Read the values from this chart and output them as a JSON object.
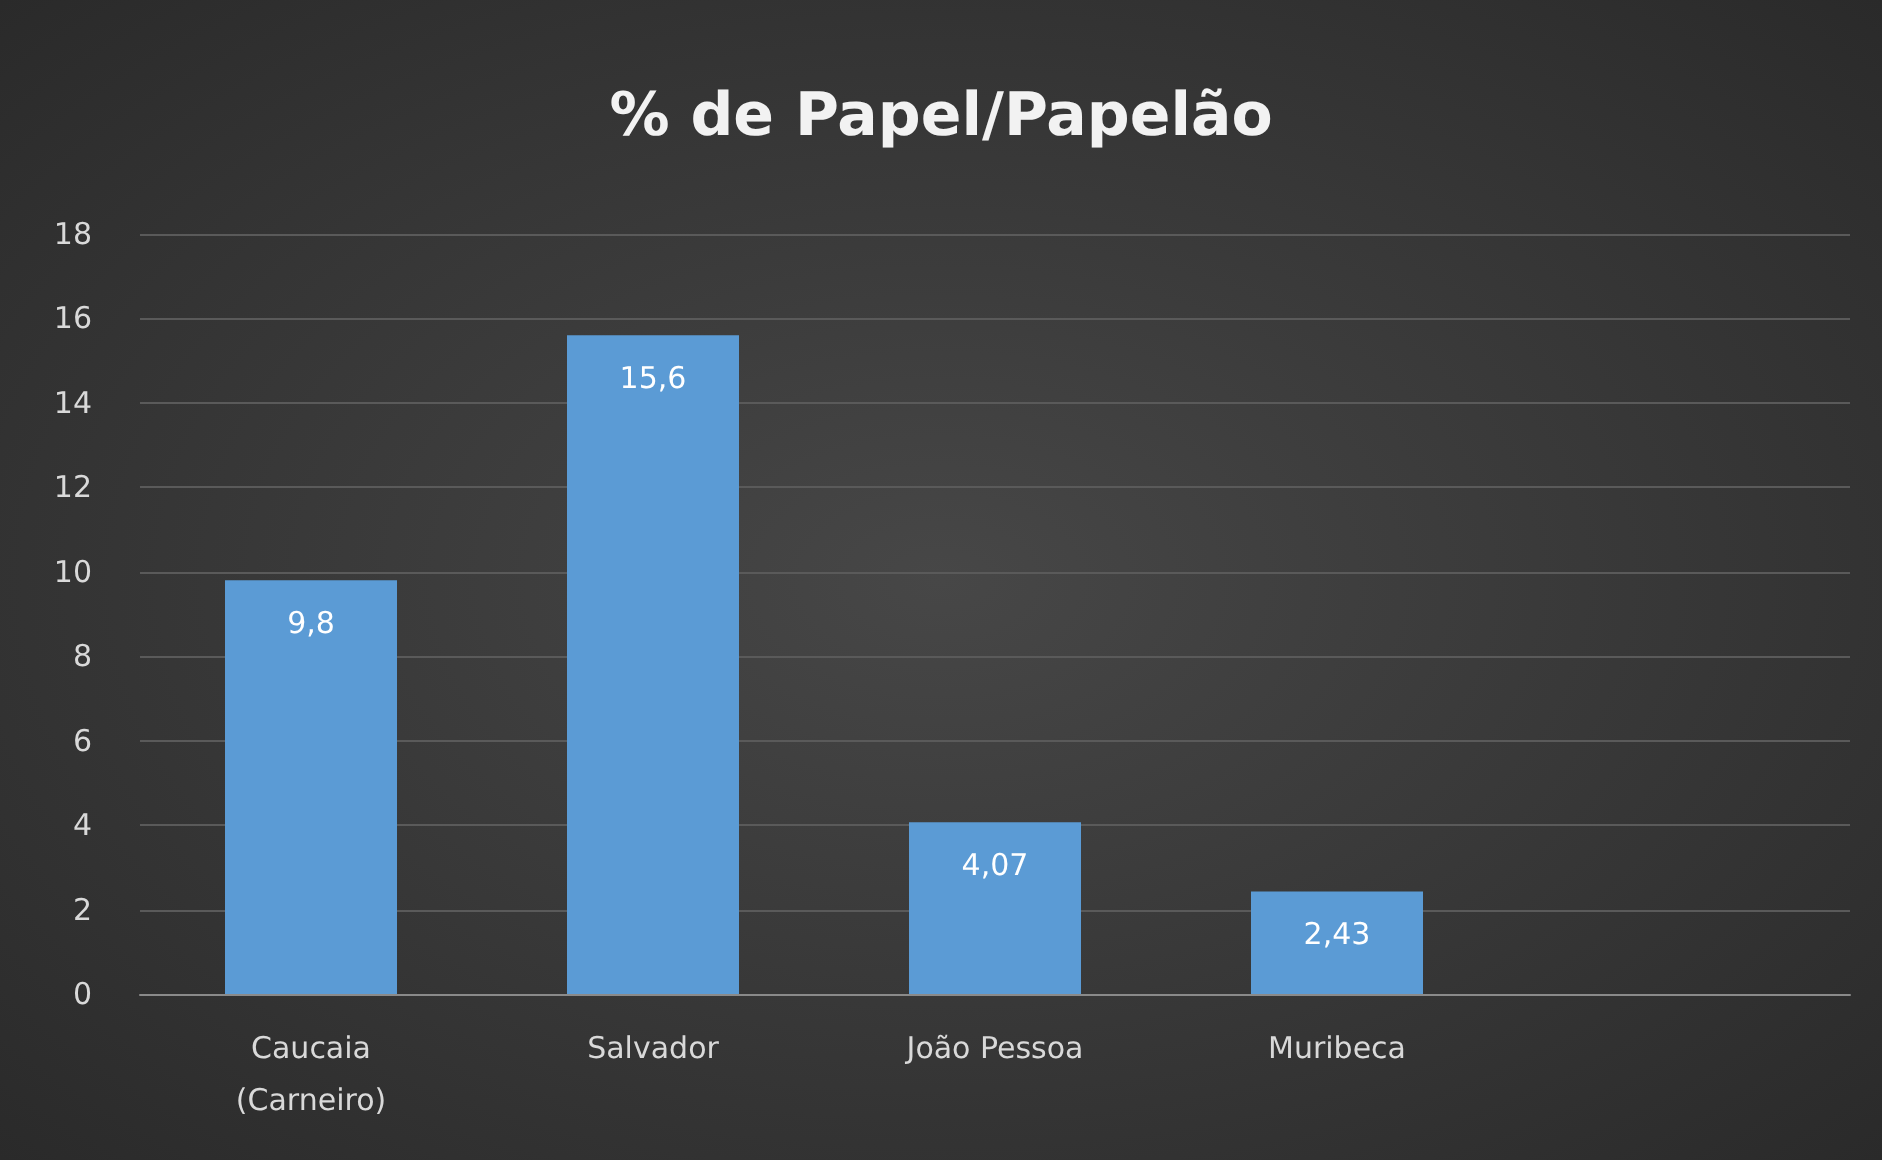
{
  "chart_data": {
    "type": "bar",
    "title": "% de Papel/Papelão",
    "categories": [
      "Caucaia\n(Carneiro)",
      "Salvador",
      "João Pessoa",
      "Muribeca",
      null
    ],
    "values": [
      9.8,
      15.6,
      4.07,
      2.43,
      null
    ],
    "value_labels": [
      "9,8",
      "15,6",
      "4,07",
      "2,43",
      null
    ],
    "color": "#5b9bd5",
    "ylim": [
      0,
      18
    ],
    "yticks": [
      0,
      2,
      4,
      6,
      8,
      10,
      12,
      14,
      16,
      18
    ],
    "grid": "y"
  }
}
